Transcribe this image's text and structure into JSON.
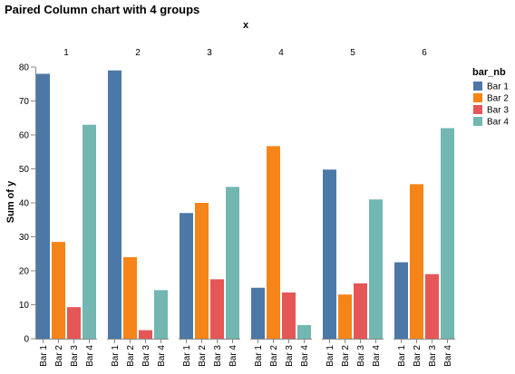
{
  "chart_data": {
    "type": "bar",
    "title": "Paired Column chart with 4 groups",
    "x_label": "x",
    "y_label": "Sum of y",
    "legend_title": "bar_nb",
    "categories": [
      "1",
      "2",
      "3",
      "4",
      "5",
      "6"
    ],
    "series": [
      {
        "name": "Bar 1",
        "color": "#4c78a8",
        "values": [
          78,
          79,
          37,
          15,
          49.8,
          22.5
        ]
      },
      {
        "name": "Bar 2",
        "color": "#f58518",
        "values": [
          28.5,
          24,
          40,
          56.7,
          13,
          45.5
        ]
      },
      {
        "name": "Bar 3",
        "color": "#e45756",
        "values": [
          9.3,
          2.5,
          17.5,
          13.6,
          16.3,
          19
        ]
      },
      {
        "name": "Bar 4",
        "color": "#72b7b2",
        "values": [
          63,
          14.3,
          44.7,
          4,
          41,
          62
        ]
      }
    ],
    "ylim": [
      0,
      80
    ],
    "yticks": [
      0,
      10,
      20,
      30,
      40,
      50,
      60,
      70,
      80
    ],
    "grid": false
  }
}
